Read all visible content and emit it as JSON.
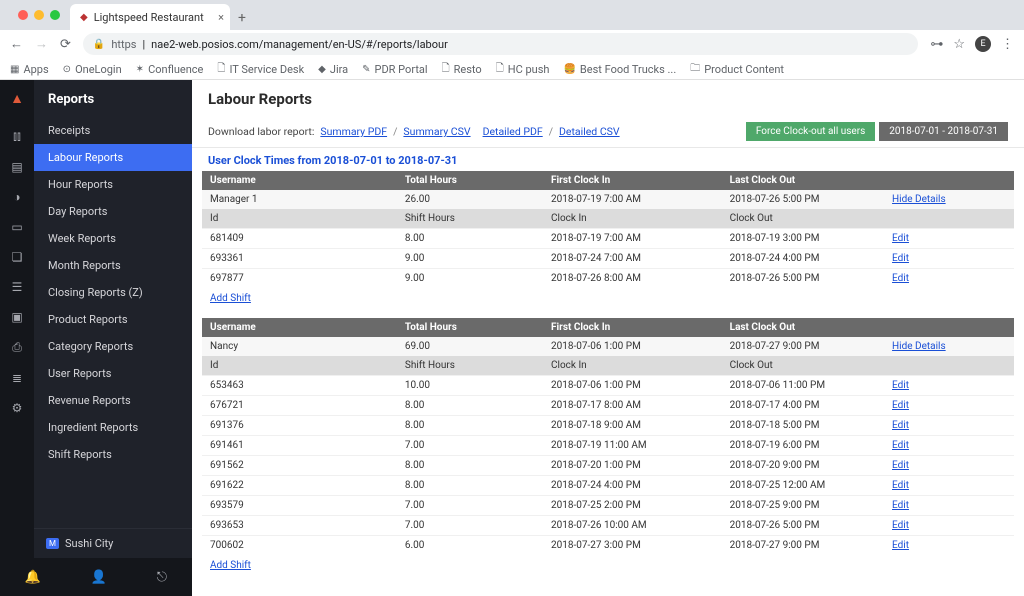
{
  "browser": {
    "tab_title": "Lightspeed Restaurant",
    "url_prefix": "https",
    "url": "nae2-web.posios.com/management/en-US/#/reports/labour",
    "avatar_letter": "E",
    "bookmarks": [
      "Apps",
      "OneLogin",
      "Confluence",
      "IT Service Desk",
      "Jira",
      "PDR Portal",
      "Resto",
      "HC push",
      "Best Food Trucks ...",
      "Product Content"
    ]
  },
  "sidebar": {
    "title": "Reports",
    "items": [
      "Receipts",
      "Labour Reports",
      "Hour Reports",
      "Day Reports",
      "Week Reports",
      "Month Reports",
      "Closing Reports (Z)",
      "Product Reports",
      "Category Reports",
      "User Reports",
      "Revenue Reports",
      "Ingredient Reports",
      "Shift Reports"
    ],
    "active_index": 1,
    "establishment_badge": "M",
    "establishment": "Sushi City"
  },
  "page": {
    "title": "Labour Reports",
    "download_label": "Download labor report:",
    "links": [
      "Summary PDF",
      "Summary CSV",
      "Detailed PDF",
      "Detailed CSV"
    ],
    "force_btn": "Force Clock-out all users",
    "date_range": "2018-07-01 - 2018-07-31",
    "clock_title": "User Clock Times from 2018-07-01 to 2018-07-31",
    "hide_details": "Hide Details",
    "edit": "Edit",
    "add_shift": "Add Shift",
    "head_user": [
      "Username",
      "Total Hours",
      "First Clock In",
      "Last Clock Out",
      ""
    ],
    "head_shift": [
      "Id",
      "Shift Hours",
      "Clock In",
      "Clock Out",
      ""
    ]
  },
  "users": [
    {
      "name": "Manager 1",
      "total_hours": "26.00",
      "first_in": "2018-07-19 7:00 AM",
      "last_out": "2018-07-26 5:00 PM",
      "shifts": [
        {
          "id": "681409",
          "hours": "8.00",
          "in": "2018-07-19 7:00 AM",
          "out": "2018-07-19 3:00 PM"
        },
        {
          "id": "693361",
          "hours": "9.00",
          "in": "2018-07-24 7:00 AM",
          "out": "2018-07-24 4:00 PM"
        },
        {
          "id": "697877",
          "hours": "9.00",
          "in": "2018-07-26 8:00 AM",
          "out": "2018-07-26 5:00 PM"
        }
      ]
    },
    {
      "name": "Nancy",
      "total_hours": "69.00",
      "first_in": "2018-07-06 1:00 PM",
      "last_out": "2018-07-27 9:00 PM",
      "shifts": [
        {
          "id": "653463",
          "hours": "10.00",
          "in": "2018-07-06 1:00 PM",
          "out": "2018-07-06 11:00 PM"
        },
        {
          "id": "676721",
          "hours": "8.00",
          "in": "2018-07-17 8:00 AM",
          "out": "2018-07-17 4:00 PM"
        },
        {
          "id": "691376",
          "hours": "8.00",
          "in": "2018-07-18 9:00 AM",
          "out": "2018-07-18 5:00 PM"
        },
        {
          "id": "691461",
          "hours": "7.00",
          "in": "2018-07-19 11:00 AM",
          "out": "2018-07-19 6:00 PM"
        },
        {
          "id": "691562",
          "hours": "8.00",
          "in": "2018-07-20 1:00 PM",
          "out": "2018-07-20 9:00 PM"
        },
        {
          "id": "691622",
          "hours": "8.00",
          "in": "2018-07-24 4:00 PM",
          "out": "2018-07-25 12:00 AM"
        },
        {
          "id": "693579",
          "hours": "7.00",
          "in": "2018-07-25 2:00 PM",
          "out": "2018-07-25 9:00 PM"
        },
        {
          "id": "693653",
          "hours": "7.00",
          "in": "2018-07-26 10:00 AM",
          "out": "2018-07-26 5:00 PM"
        },
        {
          "id": "700602",
          "hours": "6.00",
          "in": "2018-07-27 3:00 PM",
          "out": "2018-07-27 9:00 PM"
        }
      ]
    }
  ]
}
